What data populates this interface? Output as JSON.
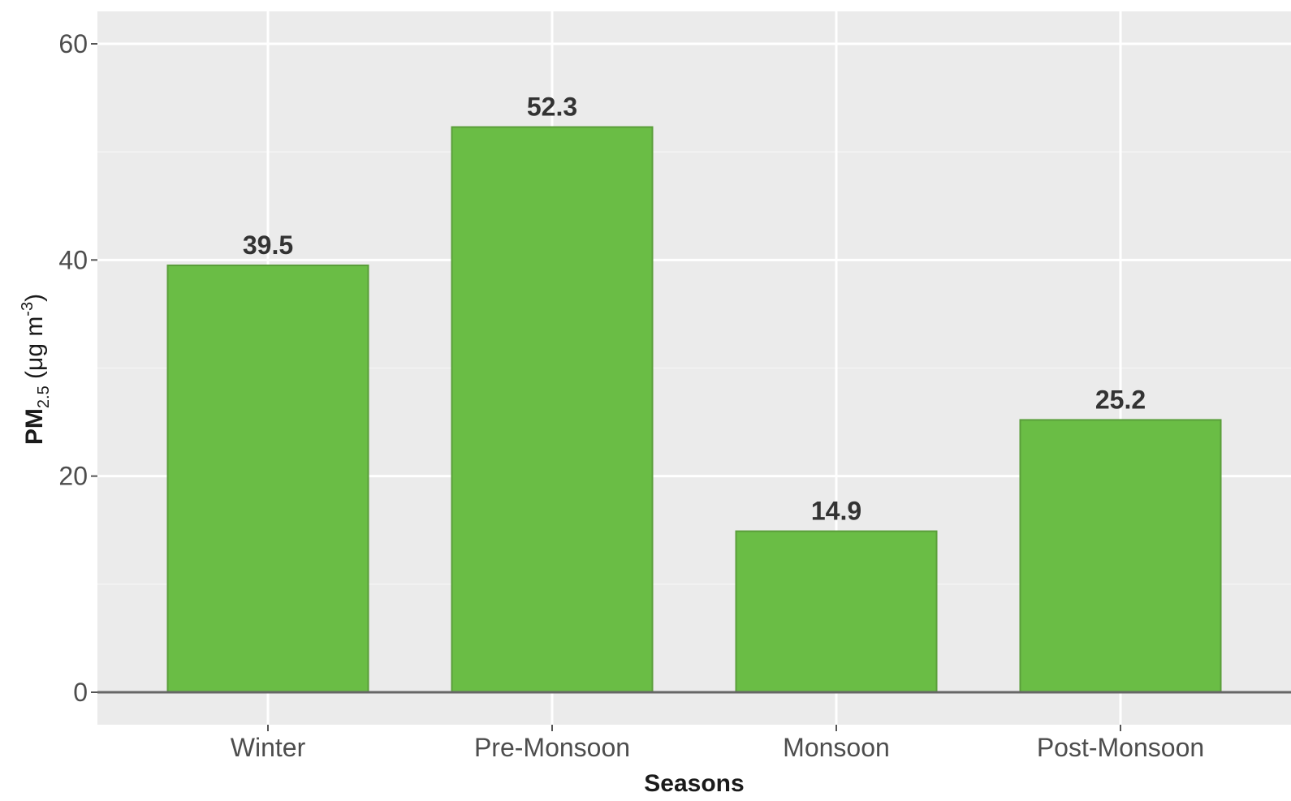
{
  "chart_data": {
    "type": "bar",
    "categories": [
      "Winter",
      "Pre-Monsoon",
      "Monsoon",
      "Post-Monsoon"
    ],
    "values": [
      39.5,
      52.3,
      14.9,
      25.2
    ],
    "data_labels": [
      "39.5",
      "52.3",
      "14.9",
      "25.2"
    ],
    "title": "",
    "xlabel": "Seasons",
    "ylabel": {
      "main": "PM",
      "subscript": "2.5",
      "unit_open": " (μg m",
      "superscript": "-3",
      "unit_close": ")"
    },
    "ylim": [
      0,
      60
    ],
    "yticks": [
      0,
      20,
      40,
      60
    ],
    "ytick_labels": [
      "0",
      "20",
      "40",
      "60"
    ],
    "grid": true,
    "legend": "none",
    "colors": {
      "bar_fill": "#6abd45",
      "bar_stroke": "#5a9e3a",
      "panel_background": "#ebebeb",
      "grid_major": "#ffffff",
      "baseline": "#666666"
    }
  }
}
